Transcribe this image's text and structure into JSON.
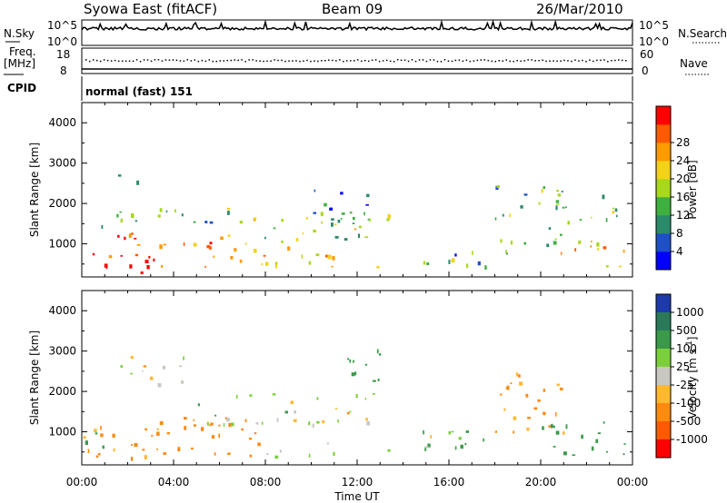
{
  "header": {
    "station": "Syowa East (fitACF)",
    "beam": "Beam 09",
    "date": "26/Mar/2010"
  },
  "meta_panels": {
    "nsky_label": "N.Sky",
    "nsearch_label": "N.Search",
    "nsky_ticks": [
      "10^5",
      "10^0"
    ],
    "nsearch_ticks": [
      "10^5",
      "10^0"
    ],
    "freq_label_1": "Freq.",
    "freq_label_2": "[MHz]",
    "freq_ticks": [
      "18",
      "8"
    ],
    "nave_label": "Nave",
    "nave_ticks": [
      "60",
      "0"
    ],
    "cpid_label": "CPID",
    "cpid_value": "normal (fast) 151"
  },
  "chart_data": [
    {
      "type": "heatmap",
      "name": "power",
      "ylabel": "Slant Range [km]",
      "xlabel": "Time UT",
      "x_ticks": [
        "00:00",
        "04:00",
        "08:00",
        "12:00",
        "16:00",
        "20:00",
        "00:00"
      ],
      "xlim_hours": [
        0,
        24
      ],
      "y_ticks": [
        1000,
        2000,
        3000,
        4000
      ],
      "ylim": [
        180,
        4500
      ],
      "colorbar": {
        "label": "Power [dB]",
        "ticks": [
          4,
          8,
          12,
          16,
          20,
          24,
          28
        ],
        "range": [
          0,
          30
        ],
        "colors": [
          "#0000ff",
          "#1e4fc4",
          "#2b8a6a",
          "#3fb040",
          "#a8d81c",
          "#f2d21a",
          "#ff9a00",
          "#ff5a00",
          "#ff0000"
        ]
      },
      "regions": [
        {
          "t0": 0.0,
          "t1": 4.2,
          "r0": 300,
          "r1": 1300,
          "level": 26
        },
        {
          "t0": 0.3,
          "t1": 6.0,
          "r0": 1400,
          "r1": 1900,
          "level": 12
        },
        {
          "t0": 1.3,
          "t1": 2.4,
          "r0": 2500,
          "r1": 2800,
          "level": 11
        },
        {
          "t0": 4.0,
          "t1": 9.0,
          "r0": 350,
          "r1": 1100,
          "level": 22
        },
        {
          "t0": 6.0,
          "t1": 13.5,
          "r0": 1100,
          "r1": 1900,
          "level": 14
        },
        {
          "t0": 9.0,
          "t1": 13.0,
          "r0": 400,
          "r1": 800,
          "level": 18
        },
        {
          "t0": 10.0,
          "t1": 13.0,
          "r0": 1500,
          "r1": 2400,
          "level": 9
        },
        {
          "t0": 14.0,
          "t1": 18.5,
          "r0": 400,
          "r1": 900,
          "level": 10
        },
        {
          "t0": 18.0,
          "t1": 21.0,
          "r0": 900,
          "r1": 2500,
          "level": 11
        },
        {
          "t0": 20.5,
          "t1": 23.8,
          "r0": 450,
          "r1": 1200,
          "level": 20
        },
        {
          "t0": 21.0,
          "t1": 23.5,
          "r0": 1500,
          "r1": 2300,
          "level": 13
        }
      ]
    },
    {
      "type": "heatmap",
      "name": "velocity",
      "ylabel": "Slant Range [km]",
      "xlabel": "Time UT",
      "x_ticks": [
        "00:00",
        "04:00",
        "08:00",
        "12:00",
        "16:00",
        "20:00",
        "00:00"
      ],
      "xlim_hours": [
        0,
        24
      ],
      "y_ticks": [
        1000,
        2000,
        3000,
        4000
      ],
      "ylim": [
        180,
        4500
      ],
      "colorbar": {
        "label": "Velocity [m s^-1]",
        "ticks": [
          1000,
          500,
          100,
          25,
          -25,
          -100,
          -500,
          -1000
        ],
        "colors": [
          "#1e3aa8",
          "#2a7a5a",
          "#3a9a4a",
          "#7ccf3c",
          "#c8c8c0",
          "#ffb830",
          "#ff8a10",
          "#ff5a00",
          "#ff0000"
        ]
      },
      "regions": [
        {
          "t0": 0.0,
          "t1": 3.5,
          "r0": 300,
          "r1": 1300,
          "level": -150
        },
        {
          "t0": 0.0,
          "t1": 1.0,
          "r0": 500,
          "r1": 1000,
          "level": 400
        },
        {
          "t0": 1.5,
          "t1": 4.5,
          "r0": 2200,
          "r1": 2900,
          "level": 0
        },
        {
          "t0": 3.0,
          "t1": 8.0,
          "r0": 400,
          "r1": 1400,
          "level": -300
        },
        {
          "t0": 5.0,
          "t1": 13.0,
          "r0": 1200,
          "r1": 2000,
          "level": 0
        },
        {
          "t0": 8.0,
          "t1": 11.0,
          "r0": 400,
          "r1": 800,
          "level": 0
        },
        {
          "t0": 11.0,
          "t1": 13.0,
          "r0": 2200,
          "r1": 3200,
          "level": 200
        },
        {
          "t0": 13.0,
          "t1": 17.5,
          "r0": 500,
          "r1": 1100,
          "level": 60
        },
        {
          "t0": 18.0,
          "t1": 21.0,
          "r0": 1000,
          "r1": 2500,
          "level": -120
        },
        {
          "t0": 20.0,
          "t1": 23.8,
          "r0": 400,
          "r1": 1300,
          "level": 300
        }
      ]
    }
  ]
}
